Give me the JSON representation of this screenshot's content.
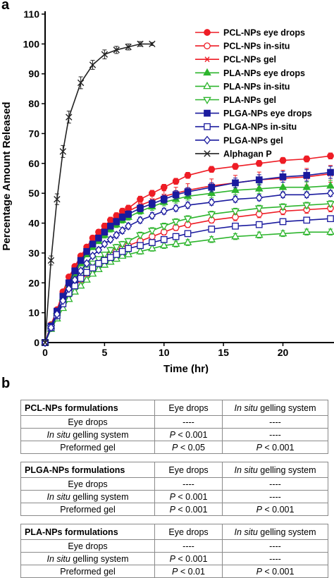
{
  "panels": {
    "a": "a",
    "b": "b"
  },
  "chart_data": {
    "type": "line",
    "xlabel": "Time (hr)",
    "ylabel": "Percentage Amount Released",
    "xlim": [
      0,
      24
    ],
    "ylim": [
      0,
      110
    ],
    "xticks": [
      0,
      5,
      10,
      15,
      20,
      25
    ],
    "yticks": [
      0,
      10,
      20,
      30,
      40,
      50,
      60,
      70,
      80,
      90,
      100,
      110
    ],
    "legend_position": "top-right",
    "grid": false,
    "series": [
      {
        "name": "PCL-NPs eye drops",
        "color": "#ee1c25",
        "marker": "circle-filled",
        "x": [
          0,
          0.5,
          1,
          1.5,
          2,
          2.5,
          3,
          3.5,
          4,
          4.5,
          5,
          5.5,
          6,
          6.5,
          7,
          8,
          9,
          10,
          11,
          12,
          14,
          16,
          18,
          20,
          22,
          24
        ],
        "y": [
          0,
          6,
          11,
          17,
          22,
          25.5,
          29,
          32,
          35,
          37,
          39,
          41,
          42.5,
          44,
          45,
          48,
          50,
          52,
          54,
          56,
          58,
          59,
          60,
          61,
          61.5,
          62.5
        ],
        "err": [
          0,
          0.5,
          0.5,
          0.6,
          0.7,
          0.7,
          0.8,
          0.8,
          0.9,
          0.9,
          1,
          1,
          1,
          1,
          1,
          1,
          1,
          1,
          1,
          1,
          1,
          1,
          1,
          1,
          1,
          1
        ]
      },
      {
        "name": "PCL-NPs in-situ",
        "color": "#ee1c25",
        "marker": "circle-open",
        "x": [
          0,
          0.5,
          1,
          1.5,
          2,
          2.5,
          3,
          3.5,
          4,
          4.5,
          5,
          5.5,
          6,
          6.5,
          7,
          8,
          9,
          10,
          11,
          12,
          14,
          16,
          18,
          20,
          22,
          24
        ],
        "y": [
          0,
          5,
          9,
          13.5,
          16.5,
          19,
          21,
          23,
          25,
          26.5,
          28,
          29.5,
          30.5,
          31.5,
          32.5,
          34,
          35.5,
          37,
          38.5,
          39.5,
          41,
          42,
          43,
          44,
          44.5,
          45
        ],
        "err": [
          0,
          0.4,
          0.4,
          0.5,
          0.6,
          0.6,
          0.7,
          0.7,
          0.8,
          0.8,
          0.8,
          0.9,
          0.9,
          0.9,
          0.9,
          1,
          1,
          1,
          1,
          1,
          1,
          1.2,
          1.2,
          1.2,
          1.2,
          1.2
        ]
      },
      {
        "name": "PCL-NPs gel",
        "color": "#ee1c25",
        "marker": "asterisk",
        "x": [
          0,
          0.5,
          1,
          1.5,
          2,
          2.5,
          3,
          3.5,
          4,
          4.5,
          5,
          5.5,
          6,
          6.5,
          7,
          8,
          9,
          10,
          11,
          12,
          14,
          16,
          18,
          20,
          22,
          24
        ],
        "y": [
          0,
          6,
          10.5,
          16,
          21,
          25,
          28.5,
          31.5,
          34,
          36,
          38,
          40,
          41.5,
          43,
          44,
          46,
          47.5,
          49,
          50,
          51,
          52.5,
          53.5,
          54.5,
          55,
          55.5,
          56.5
        ],
        "err": [
          0,
          0.5,
          0.6,
          0.7,
          0.8,
          0.9,
          1,
          1,
          1,
          1.1,
          1.2,
          1.2,
          1.2,
          1.3,
          1.3,
          1.5,
          1.6,
          1.8,
          2,
          2.2,
          2.3,
          2.5,
          2.6,
          2.7,
          2.8,
          2.8
        ]
      },
      {
        "name": "PLA-NPs eye drops",
        "color": "#2db52d",
        "marker": "triangle-filled",
        "x": [
          0,
          0.5,
          1,
          1.5,
          2,
          2.5,
          3,
          3.5,
          4,
          4.5,
          5,
          5.5,
          6,
          6.5,
          7,
          8,
          9,
          10,
          11,
          12,
          14,
          16,
          18,
          20,
          22,
          24
        ],
        "y": [
          0,
          5.5,
          10,
          15,
          19.5,
          23,
          26.5,
          29.5,
          32,
          34,
          36,
          38,
          39.5,
          41,
          42,
          44,
          45.5,
          47,
          48,
          49,
          50,
          51,
          51.5,
          52,
          52,
          52.5
        ],
        "err": [
          0,
          0.5,
          0.5,
          0.6,
          0.7,
          0.7,
          0.8,
          0.8,
          0.9,
          0.9,
          1,
          1,
          1,
          1,
          1,
          1,
          1.2,
          1.2,
          1.3,
          1.3,
          1.4,
          1.5,
          1.6,
          1.7,
          1.8,
          1.8
        ]
      },
      {
        "name": "PLA-NPs in-situ",
        "color": "#2db52d",
        "marker": "triangle-open",
        "x": [
          0,
          0.5,
          1,
          1.5,
          2,
          2.5,
          3,
          3.5,
          4,
          4.5,
          5,
          5.5,
          6,
          6.5,
          7,
          8,
          9,
          10,
          11,
          12,
          14,
          16,
          18,
          20,
          22,
          24
        ],
        "y": [
          0,
          4.5,
          8,
          11.5,
          14.5,
          17,
          19,
          21,
          23,
          24.5,
          26,
          27,
          28,
          29,
          29.5,
          30.5,
          31.5,
          32.5,
          33,
          33.5,
          34.5,
          35.5,
          36,
          36.5,
          37,
          37
        ],
        "err": [
          0,
          0.4,
          0.4,
          0.5,
          0.5,
          0.6,
          0.6,
          0.7,
          0.7,
          0.7,
          0.8,
          0.8,
          0.8,
          0.8,
          0.8,
          0.9,
          0.9,
          1,
          1,
          1,
          1,
          1,
          1,
          1,
          1,
          1
        ]
      },
      {
        "name": "PLA-NPs gel",
        "color": "#2db52d",
        "marker": "triangle-down-open",
        "x": [
          0,
          0.5,
          1,
          1.5,
          2,
          2.5,
          3,
          3.5,
          4,
          4.5,
          5,
          5.5,
          6,
          6.5,
          7,
          8,
          9,
          10,
          11,
          12,
          14,
          16,
          18,
          20,
          22,
          24
        ],
        "y": [
          0,
          5,
          9,
          13.5,
          17,
          20,
          22.5,
          24.5,
          26.5,
          28,
          29.5,
          31,
          32,
          33,
          34,
          36,
          37.5,
          39,
          40.5,
          41.5,
          43,
          44,
          45,
          45.5,
          46,
          46.5
        ],
        "err": [
          0,
          0.4,
          0.5,
          0.5,
          0.6,
          0.6,
          0.7,
          0.7,
          0.8,
          0.8,
          0.8,
          0.9,
          0.9,
          0.9,
          0.9,
          1,
          1,
          1,
          1,
          1,
          1,
          1,
          1,
          1,
          1,
          1
        ]
      },
      {
        "name": "PLGA-NPs eye drops",
        "color": "#1a1a9e",
        "marker": "square-filled",
        "x": [
          0,
          0.5,
          1,
          1.5,
          2,
          2.5,
          3,
          3.5,
          4,
          4.5,
          5,
          5.5,
          6,
          6.5,
          7,
          8,
          9,
          10,
          11,
          12,
          14,
          16,
          18,
          20,
          22,
          24
        ],
        "y": [
          0,
          5.5,
          10.5,
          15.5,
          20,
          24,
          27.5,
          30.5,
          33,
          35,
          37,
          39,
          40.5,
          42,
          43,
          45,
          46.5,
          48,
          49.5,
          50.5,
          52,
          53.5,
          54.5,
          55.5,
          56,
          57
        ],
        "err": [
          0,
          0.5,
          0.5,
          0.6,
          0.7,
          0.8,
          0.9,
          0.9,
          1,
          1,
          1,
          1,
          1.1,
          1.1,
          1.1,
          1.2,
          1.3,
          1.3,
          1.4,
          1.4,
          1.5,
          1.6,
          1.7,
          1.8,
          1.9,
          2
        ]
      },
      {
        "name": "PLGA-NPs in-situ",
        "color": "#1a1a9e",
        "marker": "square-open",
        "x": [
          0,
          0.5,
          1,
          1.5,
          2,
          2.5,
          3,
          3.5,
          4,
          4.5,
          5,
          5.5,
          6,
          6.5,
          7,
          8,
          9,
          10,
          11,
          12,
          14,
          16,
          18,
          20,
          22,
          24
        ],
        "y": [
          0,
          5,
          9,
          13,
          16.5,
          19,
          21.5,
          23.5,
          25,
          26.5,
          27.5,
          28.5,
          29.5,
          30.5,
          31.5,
          32.5,
          33.5,
          34.5,
          35.5,
          36.5,
          38,
          39,
          39.5,
          40.5,
          41,
          41.5
        ],
        "err": [
          0,
          0.4,
          0.4,
          0.5,
          0.5,
          0.6,
          0.6,
          0.7,
          0.7,
          0.7,
          0.8,
          0.8,
          0.8,
          0.8,
          0.8,
          0.9,
          0.9,
          1,
          1,
          1,
          1,
          1,
          1,
          1,
          1,
          1
        ]
      },
      {
        "name": "PLGA-NPs gel",
        "color": "#1a1a9e",
        "marker": "diamond-open",
        "x": [
          0,
          0.5,
          1,
          1.5,
          2,
          2.5,
          3,
          3.5,
          4,
          4.5,
          5,
          5.5,
          6,
          6.5,
          7,
          8,
          9,
          10,
          11,
          12,
          14,
          16,
          18,
          20,
          22,
          24
        ],
        "y": [
          0,
          5,
          9.5,
          14,
          18,
          21,
          24,
          26.5,
          29,
          31,
          33,
          34.5,
          36,
          37.5,
          39,
          41,
          42.5,
          44,
          45,
          46,
          47,
          48,
          48.5,
          49.5,
          49.5,
          50
        ],
        "err": [
          0,
          0.4,
          0.5,
          0.5,
          0.6,
          0.7,
          0.7,
          0.8,
          0.8,
          0.9,
          0.9,
          0.9,
          1,
          1,
          1,
          1,
          1,
          1,
          1,
          1,
          1,
          1,
          1,
          1,
          1,
          1
        ]
      },
      {
        "name": "Alphagan P",
        "color": "#222222",
        "marker": "x",
        "x": [
          0,
          0.5,
          1,
          1.5,
          2,
          3,
          4,
          5,
          6,
          7,
          8,
          9
        ],
        "y": [
          0,
          27.5,
          48,
          64,
          75.5,
          87,
          93,
          96.5,
          98,
          99,
          100,
          100
        ],
        "err": [
          0,
          1.5,
          1.8,
          2,
          2,
          2,
          1.5,
          1.5,
          1.2,
          1,
          0.8,
          0.5
        ]
      }
    ]
  },
  "tables": [
    {
      "title": "PCL-NPs formulations",
      "col1": "Eye drops",
      "col2_italic": "In situ",
      "col2_rest": " gelling system",
      "rows": [
        {
          "label": "Eye drops",
          "label_italic": "",
          "c1_italic": "",
          "c1": "----",
          "c2_italic": "",
          "c2": "----"
        },
        {
          "label": " gelling system",
          "label_italic": "In situ",
          "c1_italic": "P",
          "c1": " < 0.001",
          "c2_italic": "",
          "c2": "----"
        },
        {
          "label": "Preformed gel",
          "label_italic": "",
          "c1_italic": "P",
          "c1": " < 0.05",
          "c2_italic": "P",
          "c2": " < 0.001"
        }
      ]
    },
    {
      "title": "PLGA-NPs formulations",
      "col1": "Eye drops",
      "col2_italic": "In situ",
      "col2_rest": " gelling system",
      "rows": [
        {
          "label": "Eye drops",
          "label_italic": "",
          "c1_italic": "",
          "c1": "----",
          "c2_italic": "",
          "c2": "----"
        },
        {
          "label": " gelling system",
          "label_italic": "In situ",
          "c1_italic": "P",
          "c1": " < 0.001",
          "c2_italic": "",
          "c2": "----"
        },
        {
          "label": "Preformed gel",
          "label_italic": "",
          "c1_italic": "P",
          "c1": " < 0.001",
          "c2_italic": "P",
          "c2": " < 0.001"
        }
      ]
    },
    {
      "title": "PLA-NPs formulations",
      "col1": "Eye drops",
      "col2_italic": "In situ",
      "col2_rest": " gelling system",
      "rows": [
        {
          "label": "Eye drops",
          "label_italic": "",
          "c1_italic": "",
          "c1": "----",
          "c2_italic": "",
          "c2": "----"
        },
        {
          "label": " gelling system",
          "label_italic": "In situ",
          "c1_italic": "P",
          "c1": " < 0.001",
          "c2_italic": "",
          "c2": "----"
        },
        {
          "label": "Preformed gel",
          "label_italic": "",
          "c1_italic": "P",
          "c1": " < 0.01",
          "c2_italic": "P",
          "c2": " < 0.001"
        }
      ]
    }
  ]
}
